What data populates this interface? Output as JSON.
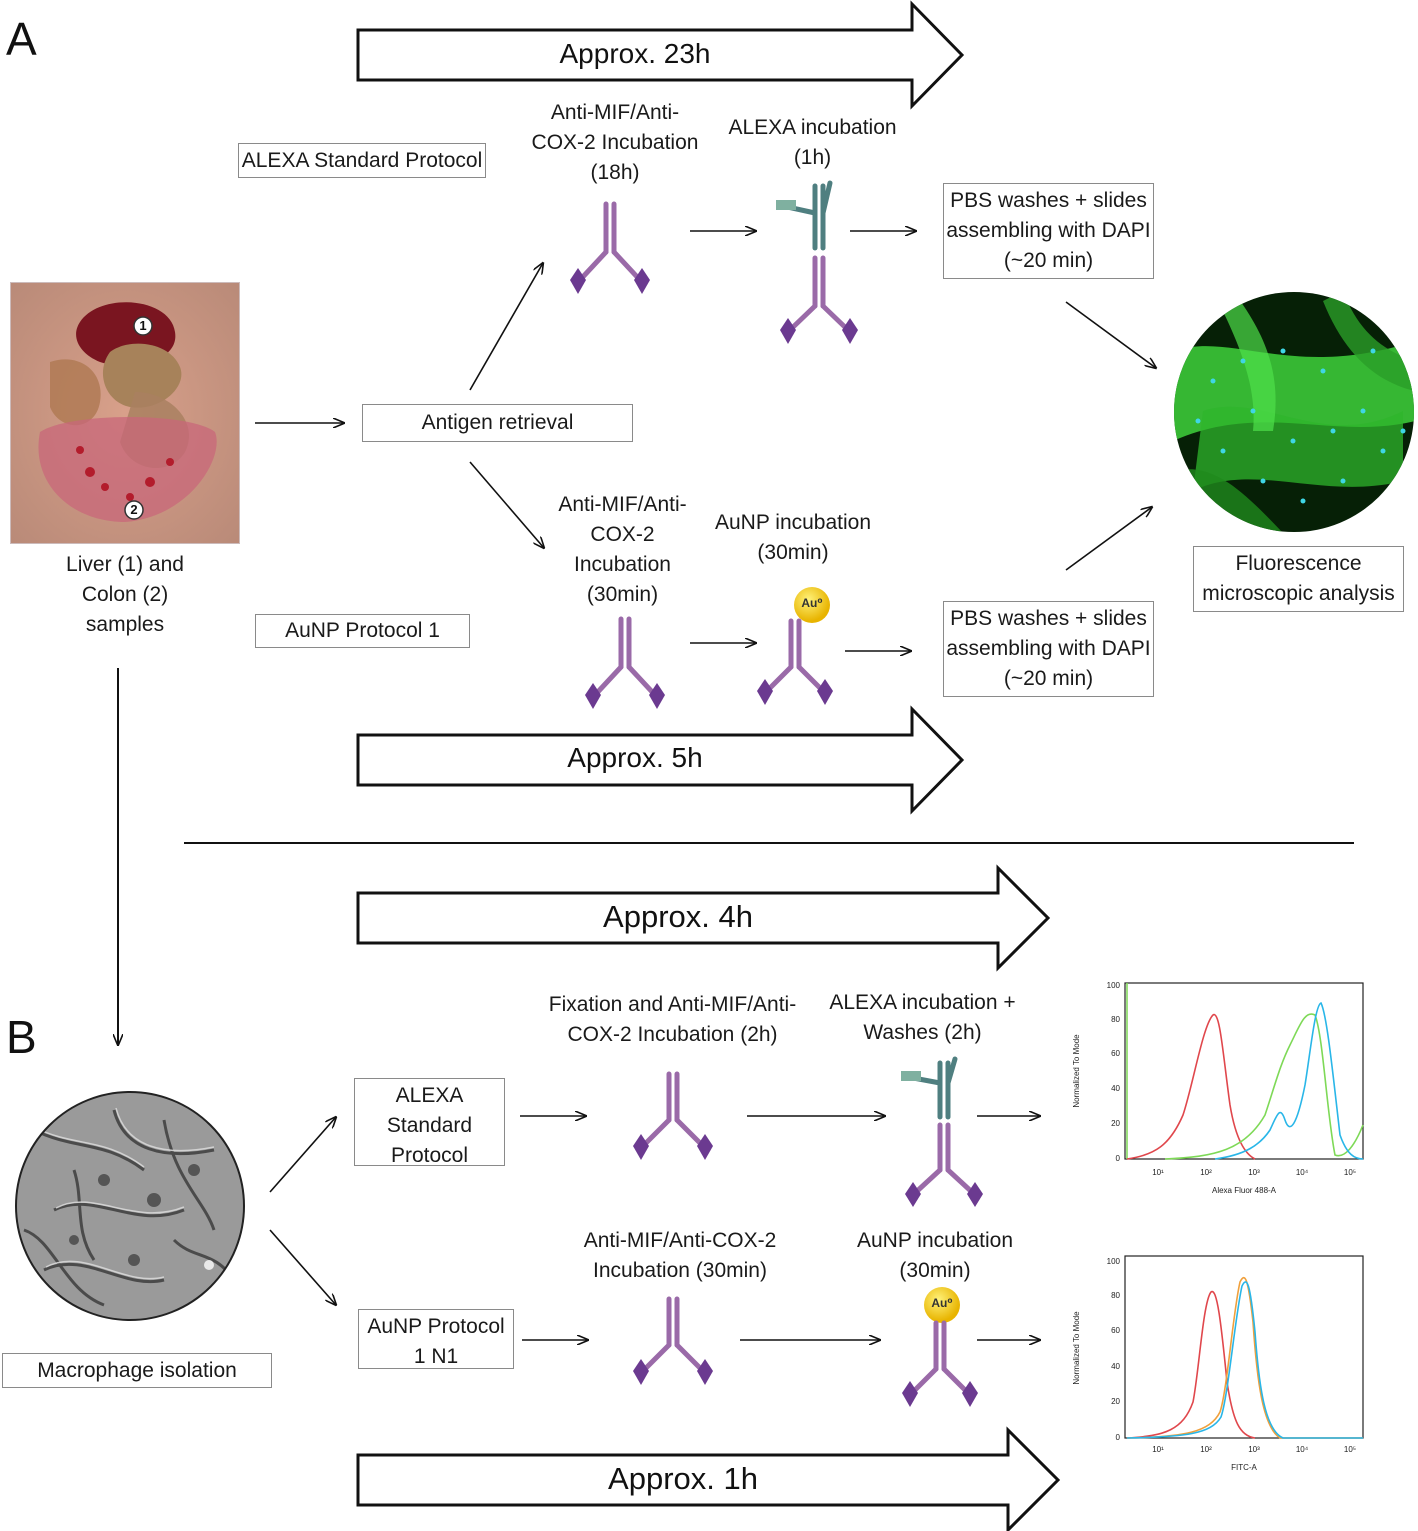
{
  "panels": {
    "a": "A",
    "b": "B"
  },
  "section_a": {
    "timeline_top": "Approx. 23h",
    "timeline_bottom": "Approx. 5h",
    "protocol_alexa": "ALEXA Standard Protocol",
    "protocol_aunp": "AuNP Protocol 1",
    "sample_label": "Liver (1) and Colon (2) samples",
    "sample_marker_1": "1",
    "sample_marker_2": "2",
    "antigen_retrieval": "Antigen retrieval",
    "alexa_step1": "Anti-MIF/Anti-COX-2 Incubation (18h)",
    "alexa_step2": "ALEXA incubation (1h)",
    "alexa_step3": "PBS washes + slides assembling with DAPI  (~20 min)",
    "aunp_step1": "Anti-MIF/Anti-COX-2 Incubation (30min)",
    "aunp_step2": "AuNP incubation (30min)",
    "aunp_step3": "PBS washes + slides assembling with DAPI  (~20 min)",
    "analysis": "Fluorescence microscopic analysis",
    "gold_label": "Au⁰"
  },
  "section_b": {
    "timeline_top": "Approx. 4h",
    "timeline_bottom": "Approx. 1h",
    "isolation": "Macrophage isolation",
    "protocol_alexa": "ALEXA Standard Protocol",
    "protocol_aunp": "AuNP Protocol 1 N1",
    "alexa_step1": "Fixation and Anti-MIF/Anti-COX-2 Incubation (2h)",
    "alexa_step2": "ALEXA incubation + Washes    (2h)",
    "aunp_step1": "Anti-MIF/Anti-COX-2 Incubation (30min)",
    "aunp_step2": "AuNP incubation (30min)",
    "gold_label": "Au⁰"
  },
  "histogram_1": {
    "ylabel": "Normalized To Mode",
    "xlabel": "Alexa Fluor 488-A",
    "yticks": [
      "0",
      "20",
      "40",
      "60",
      "80",
      "100"
    ],
    "xticks": [
      "10¹",
      "10²",
      "10³",
      "10⁴",
      "10⁵"
    ],
    "colors": {
      "red": "#e0474c",
      "green": "#7ed957",
      "cyan": "#29b6e8"
    }
  },
  "histogram_2": {
    "ylabel": "Normalized To Mode",
    "xlabel": "FITC-A",
    "yticks": [
      "0",
      "20",
      "40",
      "60",
      "80",
      "100"
    ],
    "xticks": [
      "10¹",
      "10²",
      "10³",
      "10⁴",
      "10⁵"
    ],
    "colors": {
      "red": "#e0474c",
      "orange": "#f0a03c",
      "cyan": "#29b6e8"
    }
  }
}
